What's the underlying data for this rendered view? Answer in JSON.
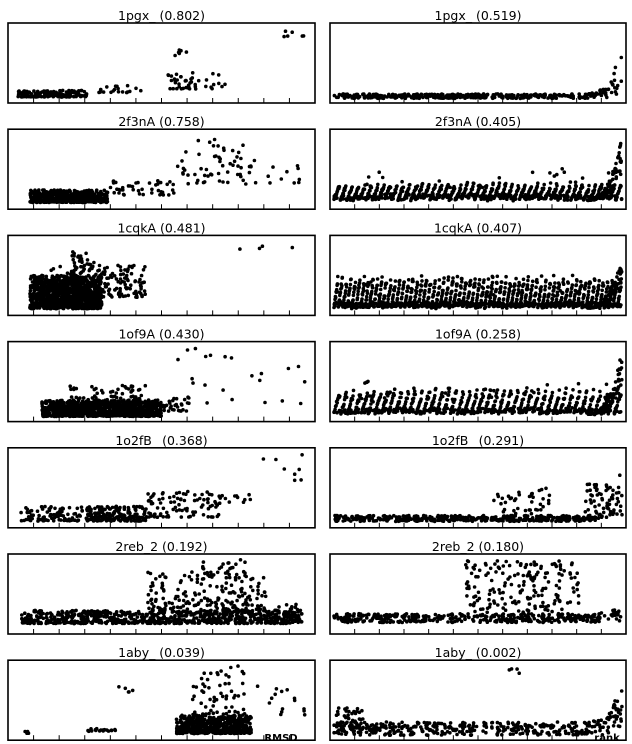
{
  "figure": {
    "x_label_left": "RMSD",
    "x_label_right": "rank"
  },
  "chart_data": [
    {
      "type": "scatter",
      "row": 0,
      "col": 0,
      "title": "1pgx_  (0.802)",
      "shape": "rmsd_hotspots",
      "seed": 11,
      "background": {
        "xrange": [
          0.03,
          0.62
        ],
        "ymax": 0.12
      },
      "clusters": [
        {
          "x": [
            0.02,
            0.25
          ],
          "y": [
            0.04,
            0.13
          ],
          "n": 160
        },
        {
          "x": [
            0.28,
            0.45
          ],
          "y": [
            0.1,
            0.2
          ],
          "n": 20
        },
        {
          "x": [
            0.52,
            0.72
          ],
          "y": [
            0.15,
            0.38
          ],
          "n": 45
        },
        {
          "x": [
            0.54,
            0.6
          ],
          "y": [
            0.6,
            0.68
          ],
          "n": 6
        },
        {
          "x": [
            0.91,
            0.98
          ],
          "y": [
            0.85,
            0.95
          ],
          "n": 6
        }
      ]
    },
    {
      "type": "scatter",
      "row": 0,
      "col": 1,
      "title": "1pgx_  (0.519)",
      "shape": "rank_baseline",
      "seed": 12,
      "spine": 0.04,
      "rise": 0.75,
      "noise": 0.06
    },
    {
      "type": "scatter",
      "row": 1,
      "col": 0,
      "title": "2f3nA  (0.758)",
      "shape": "rmsd_hotspots",
      "seed": 21,
      "background": {
        "xrange": [
          0.06,
          0.35
        ],
        "ymax": 0.15
      },
      "clusters": [
        {
          "x": [
            0.06,
            0.32
          ],
          "y": [
            0.05,
            0.22
          ],
          "n": 550
        },
        {
          "x": [
            0.3,
            0.55
          ],
          "y": [
            0.15,
            0.35
          ],
          "n": 45
        },
        {
          "x": [
            0.55,
            0.82
          ],
          "y": [
            0.3,
            0.92
          ],
          "n": 60
        },
        {
          "x": [
            0.85,
            0.98
          ],
          "y": [
            0.3,
            0.55
          ],
          "n": 10
        }
      ]
    },
    {
      "type": "scatter",
      "row": 1,
      "col": 1,
      "title": "2f3nA  (0.405)",
      "shape": "rank_sawtooth",
      "seed": 22,
      "teeth": 45,
      "tooth": 0.18,
      "spine": 0.08,
      "rise": 0.85
    },
    {
      "type": "scatter",
      "row": 2,
      "col": 0,
      "title": "1cqkA  (0.481)",
      "shape": "rmsd_hotspots",
      "seed": 31,
      "background": {
        "xrange": [
          0.06,
          0.45
        ],
        "ymax": 0.1
      },
      "clusters": [
        {
          "x": [
            0.06,
            0.3
          ],
          "y": [
            0.05,
            0.5
          ],
          "n": 1100
        },
        {
          "x": [
            0.12,
            0.45
          ],
          "y": [
            0.2,
            0.65
          ],
          "n": 220
        },
        {
          "x": [
            0.2,
            0.28
          ],
          "y": [
            0.6,
            0.85
          ],
          "n": 25
        },
        {
          "x": [
            0.72,
            0.97
          ],
          "y": [
            0.85,
            0.96
          ],
          "n": 4
        }
      ]
    },
    {
      "type": "scatter",
      "row": 2,
      "col": 1,
      "title": "1cqkA  (0.407)",
      "shape": "rank_sawtooth",
      "seed": 32,
      "teeth": 65,
      "tooth": 0.35,
      "spine": 0.06,
      "rise": 0.75
    },
    {
      "type": "scatter",
      "row": 3,
      "col": 0,
      "title": "1of9A  (0.430)",
      "shape": "rmsd_hotspots",
      "seed": 41,
      "background": {
        "xrange": [
          0.02,
          0.6
        ],
        "ymax": 0.1
      },
      "clusters": [
        {
          "x": [
            0.1,
            0.5
          ],
          "y": [
            0.03,
            0.25
          ],
          "n": 1000
        },
        {
          "x": [
            0.18,
            0.45
          ],
          "y": [
            0.15,
            0.45
          ],
          "n": 120
        },
        {
          "x": [
            0.5,
            0.6
          ],
          "y": [
            0.1,
            0.28
          ],
          "n": 30
        },
        {
          "x": [
            0.55,
            0.98
          ],
          "y": [
            0.2,
            0.95
          ],
          "n": 25
        }
      ]
    },
    {
      "type": "scatter",
      "row": 3,
      "col": 1,
      "title": "1of9A  (0.258)",
      "shape": "rank_sawtooth",
      "seed": 42,
      "teeth": 42,
      "tooth": 0.28,
      "spine": 0.06,
      "rise": 0.85
    },
    {
      "type": "scatter",
      "row": 4,
      "col": 0,
      "title": "1o2fB_  (0.368)",
      "shape": "rmsd_hotspots",
      "seed": 51,
      "background": {
        "xrange": [
          0.03,
          0.6
        ],
        "ymax": 0.15
      },
      "clusters": [
        {
          "x": [
            0.03,
            0.25
          ],
          "y": [
            0.05,
            0.25
          ],
          "n": 90
        },
        {
          "x": [
            0.25,
            0.45
          ],
          "y": [
            0.05,
            0.25
          ],
          "n": 200
        },
        {
          "x": [
            0.45,
            0.7
          ],
          "y": [
            0.1,
            0.45
          ],
          "n": 90
        },
        {
          "x": [
            0.7,
            0.8
          ],
          "y": [
            0.3,
            0.45
          ],
          "n": 10
        },
        {
          "x": [
            0.84,
            0.98
          ],
          "y": [
            0.6,
            0.95
          ],
          "n": 8
        }
      ]
    },
    {
      "type": "scatter",
      "row": 4,
      "col": 1,
      "title": "1o2fB_  (0.291)",
      "shape": "rank_baseline",
      "seed": 52,
      "spine": 0.07,
      "rise": 0.8,
      "noise": 0.08,
      "extra": [
        {
          "x": [
            0.55,
            0.75
          ],
          "y": [
            0.15,
            0.5
          ],
          "n": 40
        },
        {
          "x": [
            0.87,
            0.97
          ],
          "y": [
            0.15,
            0.55
          ],
          "n": 40
        }
      ]
    },
    {
      "type": "scatter",
      "row": 5,
      "col": 0,
      "title": "2reb_2 (0.192)",
      "shape": "rmsd_hotspots",
      "seed": 61,
      "background": {
        "xrange": [
          0.03,
          0.97
        ],
        "ymax": 0.2
      },
      "clusters": [
        {
          "x": [
            0.03,
            0.97
          ],
          "y": [
            0.1,
            0.28
          ],
          "n": 800
        },
        {
          "x": [
            0.45,
            0.85
          ],
          "y": [
            0.25,
            0.8
          ],
          "n": 200
        },
        {
          "x": [
            0.62,
            0.78
          ],
          "y": [
            0.7,
            0.98
          ],
          "n": 30
        },
        {
          "x": [
            0.88,
            0.97
          ],
          "y": [
            0.25,
            0.4
          ],
          "n": 15
        }
      ]
    },
    {
      "type": "scatter",
      "row": 5,
      "col": 1,
      "title": "2reb_2 (0.180)",
      "shape": "rank_baseline",
      "seed": 62,
      "spine": 0.15,
      "rise": 0.15,
      "noise": 0.12,
      "extra": [
        {
          "x": [
            0.45,
            0.85
          ],
          "y": [
            0.25,
            0.95
          ],
          "n": 180
        }
      ]
    },
    {
      "type": "scatter",
      "row": 6,
      "col": 0,
      "title": "1aby_  (0.039)",
      "shape": "rmsd_hotspots",
      "seed": 71,
      "background": {
        "xrange": [
          0.0,
          0.45
        ],
        "ymax": 0.1
      },
      "clusters": [
        {
          "x": [
            0.04,
            0.06
          ],
          "y": [
            0.05,
            0.1
          ],
          "n": 4
        },
        {
          "x": [
            0.25,
            0.35
          ],
          "y": [
            0.08,
            0.12
          ],
          "n": 18
        },
        {
          "x": [
            0.35,
            0.42
          ],
          "y": [
            0.6,
            0.7
          ],
          "n": 5
        },
        {
          "x": [
            0.55,
            0.8
          ],
          "y": [
            0.05,
            0.3
          ],
          "n": 550
        },
        {
          "x": [
            0.6,
            0.78
          ],
          "y": [
            0.3,
            0.98
          ],
          "n": 60
        },
        {
          "x": [
            0.82,
            0.98
          ],
          "y": [
            0.3,
            0.7
          ],
          "n": 15
        }
      ]
    },
    {
      "type": "scatter",
      "row": 6,
      "col": 1,
      "title": "1aby_  (0.002)",
      "shape": "rank_baseline",
      "seed": 72,
      "spine": 0.08,
      "rise": 0.55,
      "noise": 0.18,
      "extra": [
        {
          "x": [
            0.0,
            0.1
          ],
          "y": [
            0.1,
            0.4
          ],
          "n": 40
        },
        {
          "x": [
            0.6,
            0.7
          ],
          "y": [
            0.85,
            0.95
          ],
          "n": 4
        },
        {
          "x": [
            0.95,
            1.0
          ],
          "y": [
            0.2,
            0.5
          ],
          "n": 15
        }
      ]
    }
  ]
}
